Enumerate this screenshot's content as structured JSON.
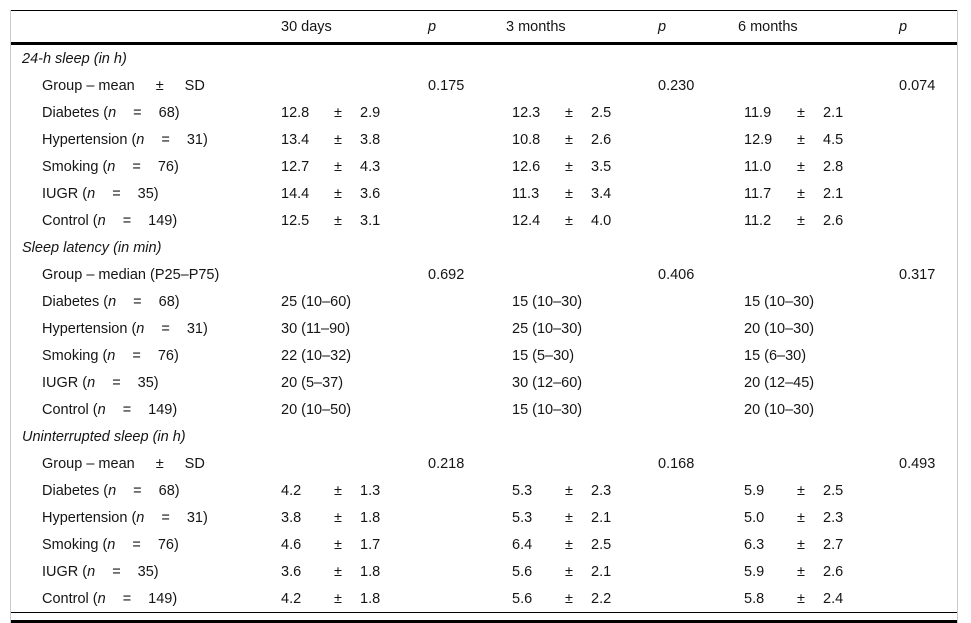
{
  "table": {
    "symbols": {
      "n": "n",
      "eq": "=",
      "pm": "±"
    },
    "header": {
      "columns": [
        {
          "label": "30 days",
          "italic": false
        },
        {
          "label": "p",
          "italic": true
        },
        {
          "label": "3 months",
          "italic": false
        },
        {
          "label": "p",
          "italic": true
        },
        {
          "label": "6 months",
          "italic": false
        },
        {
          "label": "p",
          "italic": true
        }
      ]
    },
    "sections": [
      {
        "title": "24-h sleep (in h)",
        "stat_label": {
          "pre": "Group – mean",
          "pm": "±",
          "post": "SD"
        },
        "p_values": [
          "0.175",
          "0.230",
          "0.074"
        ],
        "value_type": "mean_sd",
        "rows": [
          {
            "group": "Diabetes",
            "n": "68",
            "values": [
              [
                "12.8",
                "2.9"
              ],
              [
                "12.3",
                "2.5"
              ],
              [
                "11.9",
                "2.1"
              ]
            ]
          },
          {
            "group": "Hypertension",
            "n": "31",
            "values": [
              [
                "13.4",
                "3.8"
              ],
              [
                "10.8",
                "2.6"
              ],
              [
                "12.9",
                "4.5"
              ]
            ]
          },
          {
            "group": "Smoking",
            "n": "76",
            "values": [
              [
                "12.7",
                "4.3"
              ],
              [
                "12.6",
                "3.5"
              ],
              [
                "11.0",
                "2.8"
              ]
            ]
          },
          {
            "group": "IUGR",
            "n": "35",
            "values": [
              [
                "14.4",
                "3.6"
              ],
              [
                "11.3",
                "3.4"
              ],
              [
                "11.7",
                "2.1"
              ]
            ]
          },
          {
            "group": "Control",
            "n": "149",
            "values": [
              [
                "12.5",
                "3.1"
              ],
              [
                "12.4",
                "4.0"
              ],
              [
                "11.2",
                "2.6"
              ]
            ]
          }
        ]
      },
      {
        "title": "Sleep latency (in min)",
        "stat_label": {
          "pre": "Group – median (P25–P75)"
        },
        "p_values": [
          "0.692",
          "0.406",
          "0.317"
        ],
        "value_type": "median_range",
        "rows": [
          {
            "group": "Diabetes",
            "n": "68",
            "values": [
              "25 (10–60)",
              "15 (10–30)",
              "15 (10–30)"
            ]
          },
          {
            "group": "Hypertension",
            "n": "31",
            "values": [
              "30 (11–90)",
              "25 (10–30)",
              "20 (10–30)"
            ]
          },
          {
            "group": "Smoking",
            "n": "76",
            "values": [
              "22 (10–32)",
              "15 (5–30)",
              "15 (6–30)"
            ]
          },
          {
            "group": "IUGR",
            "n": "35",
            "values": [
              "20 (5–37)",
              "30 (12–60)",
              "20 (12–45)"
            ]
          },
          {
            "group": "Control",
            "n": "149",
            "values": [
              "20 (10–50)",
              "15 (10–30)",
              "20 (10–30)"
            ]
          }
        ]
      },
      {
        "title": "Uninterrupted sleep (in h)",
        "stat_label": {
          "pre": "Group – mean",
          "pm": "±",
          "post": "SD"
        },
        "p_values": [
          "0.218",
          "0.168",
          "0.493"
        ],
        "value_type": "mean_sd",
        "rows": [
          {
            "group": "Diabetes",
            "n": "68",
            "values": [
              [
                "4.2",
                "1.3"
              ],
              [
                "5.3",
                "2.3"
              ],
              [
                "5.9",
                "2.5"
              ]
            ]
          },
          {
            "group": "Hypertension",
            "n": "31",
            "values": [
              [
                "3.8",
                "1.8"
              ],
              [
                "5.3",
                "2.1"
              ],
              [
                "5.0",
                "2.3"
              ]
            ]
          },
          {
            "group": "Smoking",
            "n": "76",
            "values": [
              [
                "4.6",
                "1.7"
              ],
              [
                "6.4",
                "2.5"
              ],
              [
                "6.3",
                "2.7"
              ]
            ]
          },
          {
            "group": "IUGR",
            "n": "35",
            "values": [
              [
                "3.6",
                "1.8"
              ],
              [
                "5.6",
                "2.1"
              ],
              [
                "5.9",
                "2.6"
              ]
            ]
          },
          {
            "group": "Control",
            "n": "149",
            "values": [
              [
                "4.2",
                "1.8"
              ],
              [
                "5.6",
                "2.2"
              ],
              [
                "5.8",
                "2.4"
              ]
            ]
          }
        ]
      }
    ]
  }
}
